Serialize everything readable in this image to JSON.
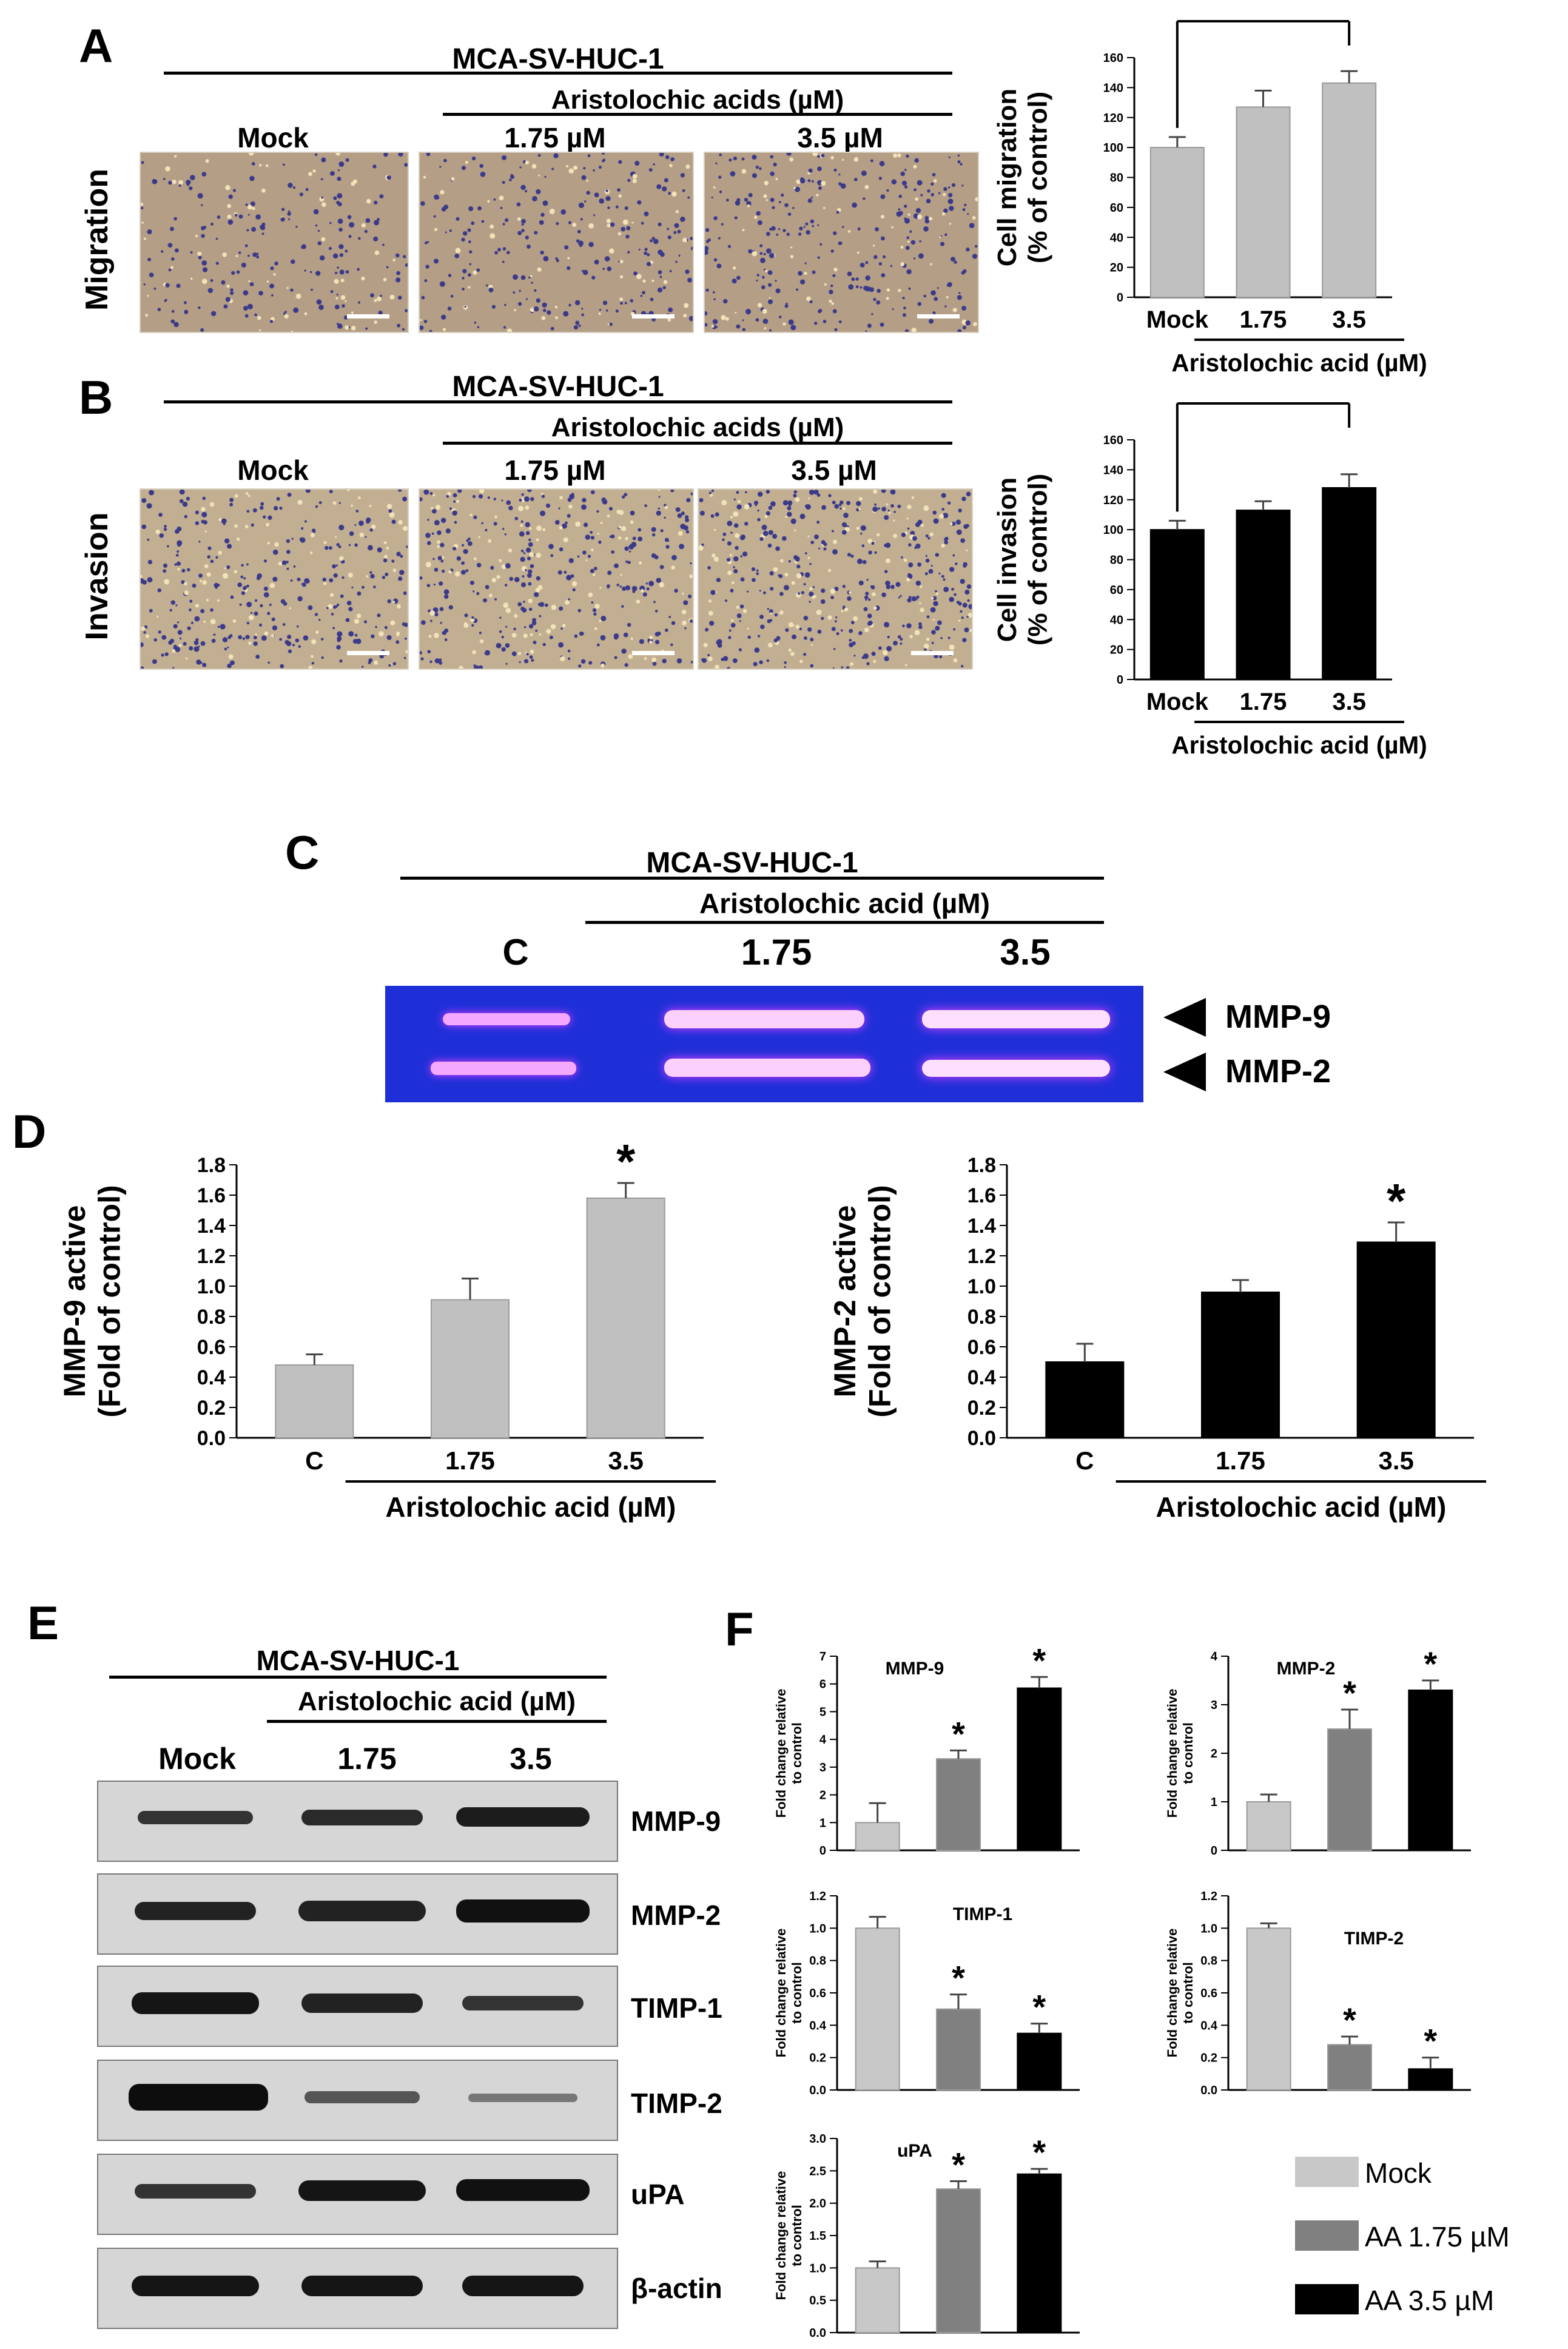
{
  "panelA": {
    "label": "A",
    "cellline": "MCA-SV-HUC-1",
    "treatment": "Aristolochic acids (µM)",
    "columns": [
      "Mock",
      "1.75 µM",
      "3.5 µM"
    ],
    "rowlabel": "Migration"
  },
  "panelB": {
    "label": "B",
    "cellline": "MCA-SV-HUC-1",
    "treatment": "Aristolochic acids (µM)",
    "columns": [
      "Mock",
      "1.75 µM",
      "3.5 µM"
    ],
    "rowlabel": "Invasion"
  },
  "panelC": {
    "label": "C",
    "cellline": "MCA-SV-HUC-1",
    "treatment": "Aristolochic acid  (µM)",
    "columns": [
      "C",
      "1.75",
      "3.5"
    ],
    "bands": [
      "MMP-9",
      "MMP-2"
    ],
    "gel_color": "#1f2fd8"
  },
  "panelD": {
    "label": "D"
  },
  "panelE": {
    "label": "E",
    "cellline": "MCA-SV-HUC-1",
    "treatment": "Aristolochic acid  (µM)",
    "columns": [
      "Mock",
      "1.75",
      "3.5"
    ],
    "proteins": [
      "MMP-9",
      "MMP-2",
      "TIMP-1",
      "TIMP-2",
      "uPA",
      "β-actin"
    ]
  },
  "panelF": {
    "label": "F",
    "legend": [
      {
        "label": "Mock",
        "color": "#c8c8c8"
      },
      {
        "label": "AA 1.75 µM",
        "color": "#808080"
      },
      {
        "label": "AA 3.5 µM",
        "color": "#000000"
      }
    ]
  },
  "chart_data": [
    {
      "id": "A-migration",
      "type": "bar",
      "categories": [
        "Mock",
        "1.75",
        "3.5"
      ],
      "values": [
        100,
        127,
        143
      ],
      "errors": [
        7,
        11,
        8
      ],
      "color": "#c0c0c0",
      "ylabel": "Cell migration\n(% of control)",
      "xlabel": "Aristolochic acid  (µM)",
      "ylim": [
        0,
        160
      ],
      "yticks": [
        "0",
        "20",
        "40",
        "60",
        "80",
        "100",
        "120",
        "140",
        "160"
      ],
      "significance": "*"
    },
    {
      "id": "B-invasion",
      "type": "bar",
      "categories": [
        "Mock",
        "1.75",
        "3.5"
      ],
      "values": [
        100,
        113,
        128
      ],
      "errors": [
        6,
        6,
        9
      ],
      "color": "#000000",
      "ylabel": "Cell invasion\n(% of control)",
      "xlabel": "Aristolochic acid  (µM)",
      "ylim": [
        0,
        160
      ],
      "yticks": [
        "0",
        "20",
        "40",
        "60",
        "80",
        "100",
        "120",
        "140",
        "160"
      ],
      "significance": "*"
    },
    {
      "id": "D-MMP9",
      "type": "bar",
      "categories": [
        "C",
        "1.75",
        "3.5"
      ],
      "values": [
        0.48,
        0.91,
        1.58
      ],
      "errors": [
        0.07,
        0.14,
        0.1
      ],
      "color": "#c0c0c0",
      "ylabel": "MMP-9 active\n(Fold of control)",
      "xlabel": "Aristolochic acid  (µM)",
      "ylim": [
        0,
        1.8
      ],
      "yticks": [
        "0.0",
        "0.2",
        "0.4",
        "0.6",
        "0.8",
        "1.0",
        "1.2",
        "1.4",
        "1.6",
        "1.8"
      ],
      "stars": [
        "",
        "",
        "*"
      ]
    },
    {
      "id": "D-MMP2",
      "type": "bar",
      "categories": [
        "C",
        "1.75",
        "3.5"
      ],
      "values": [
        0.5,
        0.96,
        1.29
      ],
      "errors": [
        0.12,
        0.08,
        0.13
      ],
      "color": "#000000",
      "ylabel": "MMP-2 active\n(Fold of control)",
      "xlabel": "Aristolochic acid  (µM)",
      "ylim": [
        0,
        1.8
      ],
      "yticks": [
        "0.0",
        "0.2",
        "0.4",
        "0.6",
        "0.8",
        "1.0",
        "1.2",
        "1.4",
        "1.6",
        "1.8"
      ],
      "stars": [
        "",
        "",
        "*"
      ]
    },
    {
      "id": "F-MMP9",
      "type": "bar",
      "title": "MMP-9",
      "categories": [
        "Mock",
        "AA 1.75 µM",
        "AA 3.5 µM"
      ],
      "values": [
        1.0,
        3.3,
        5.85
      ],
      "errors": [
        0.7,
        0.3,
        0.4
      ],
      "colors": [
        "#c8c8c8",
        "#808080",
        "#000000"
      ],
      "ylabel": "Fold change relative\nto control",
      "ylim": [
        0,
        7
      ],
      "yticks": [
        "0",
        "1",
        "2",
        "3",
        "4",
        "5",
        "6",
        "7"
      ],
      "stars": [
        "",
        "*",
        "*"
      ]
    },
    {
      "id": "F-MMP2",
      "type": "bar",
      "title": "MMP-2",
      "categories": [
        "Mock",
        "AA 1.75 µM",
        "AA 3.5 µM"
      ],
      "values": [
        1.0,
        2.5,
        3.3
      ],
      "errors": [
        0.15,
        0.4,
        0.2
      ],
      "colors": [
        "#c8c8c8",
        "#808080",
        "#000000"
      ],
      "ylabel": "Fold change relative\nto control",
      "ylim": [
        0,
        4
      ],
      "yticks": [
        "0",
        "1",
        "2",
        "3",
        "4"
      ],
      "stars": [
        "",
        "*",
        "*"
      ]
    },
    {
      "id": "F-TIMP1",
      "type": "bar",
      "title": "TIMP-1",
      "categories": [
        "Mock",
        "AA 1.75 µM",
        "AA 3.5 µM"
      ],
      "values": [
        1.0,
        0.5,
        0.35
      ],
      "errors": [
        0.07,
        0.09,
        0.06
      ],
      "colors": [
        "#c8c8c8",
        "#808080",
        "#000000"
      ],
      "ylabel": "Fold change relative\nto control",
      "ylim": [
        0,
        1.2
      ],
      "yticks": [
        "0.0",
        "0.2",
        "0.4",
        "0.6",
        "0.8",
        "1.0",
        "1.2"
      ],
      "stars": [
        "",
        "*",
        "*"
      ]
    },
    {
      "id": "F-TIMP2",
      "type": "bar",
      "title": "TIMP-2",
      "categories": [
        "Mock",
        "AA 1.75 µM",
        "AA 3.5 µM"
      ],
      "values": [
        1.0,
        0.28,
        0.13
      ],
      "errors": [
        0.03,
        0.05,
        0.07
      ],
      "colors": [
        "#c8c8c8",
        "#808080",
        "#000000"
      ],
      "ylabel": "Fold change relative\nto control",
      "ylim": [
        0,
        1.2
      ],
      "yticks": [
        "0.0",
        "0.2",
        "0.4",
        "0.6",
        "0.8",
        "1.0",
        "1.2"
      ],
      "stars": [
        "",
        "*",
        "*"
      ]
    },
    {
      "id": "F-uPA",
      "type": "bar",
      "title": "uPA",
      "categories": [
        "Mock",
        "AA 1.75 µM",
        "AA 3.5 µM"
      ],
      "values": [
        1.0,
        2.22,
        2.45
      ],
      "errors": [
        0.1,
        0.12,
        0.08
      ],
      "colors": [
        "#c8c8c8",
        "#808080",
        "#000000"
      ],
      "ylabel": "Fold change relative\nto control",
      "ylim": [
        0,
        3.0
      ],
      "yticks": [
        "0.0",
        "0.5",
        "1.0",
        "1.5",
        "2.0",
        "2.5",
        "3.0"
      ],
      "stars": [
        "",
        "*",
        "*"
      ]
    }
  ]
}
